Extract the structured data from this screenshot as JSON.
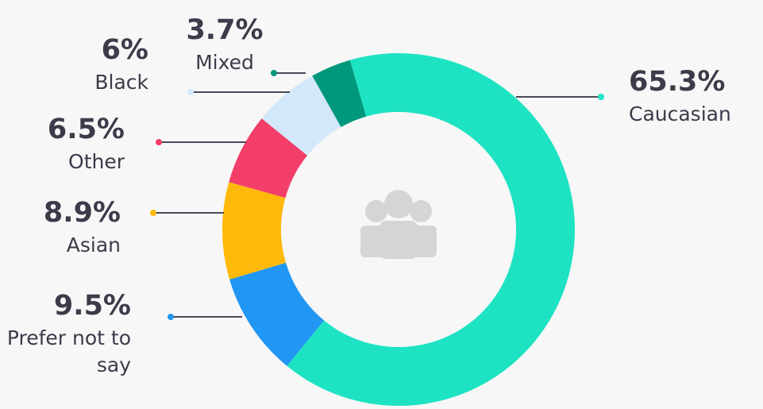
{
  "chart_data": {
    "type": "donut",
    "categories": [
      "Caucasian",
      "Prefer not to say",
      "Asian",
      "Other",
      "Black",
      "Mixed"
    ],
    "values": [
      65.3,
      9.5,
      8.9,
      6.5,
      6,
      3.7
    ],
    "value_labels": [
      "65.3%",
      "9.5%",
      "8.9%",
      "6.5%",
      "6%",
      "3.7%"
    ],
    "colors": [
      "#1de3c3",
      "#2196f3",
      "#ffb90a",
      "#f23e69",
      "#d4e8fb",
      "#00987c"
    ]
  }
}
